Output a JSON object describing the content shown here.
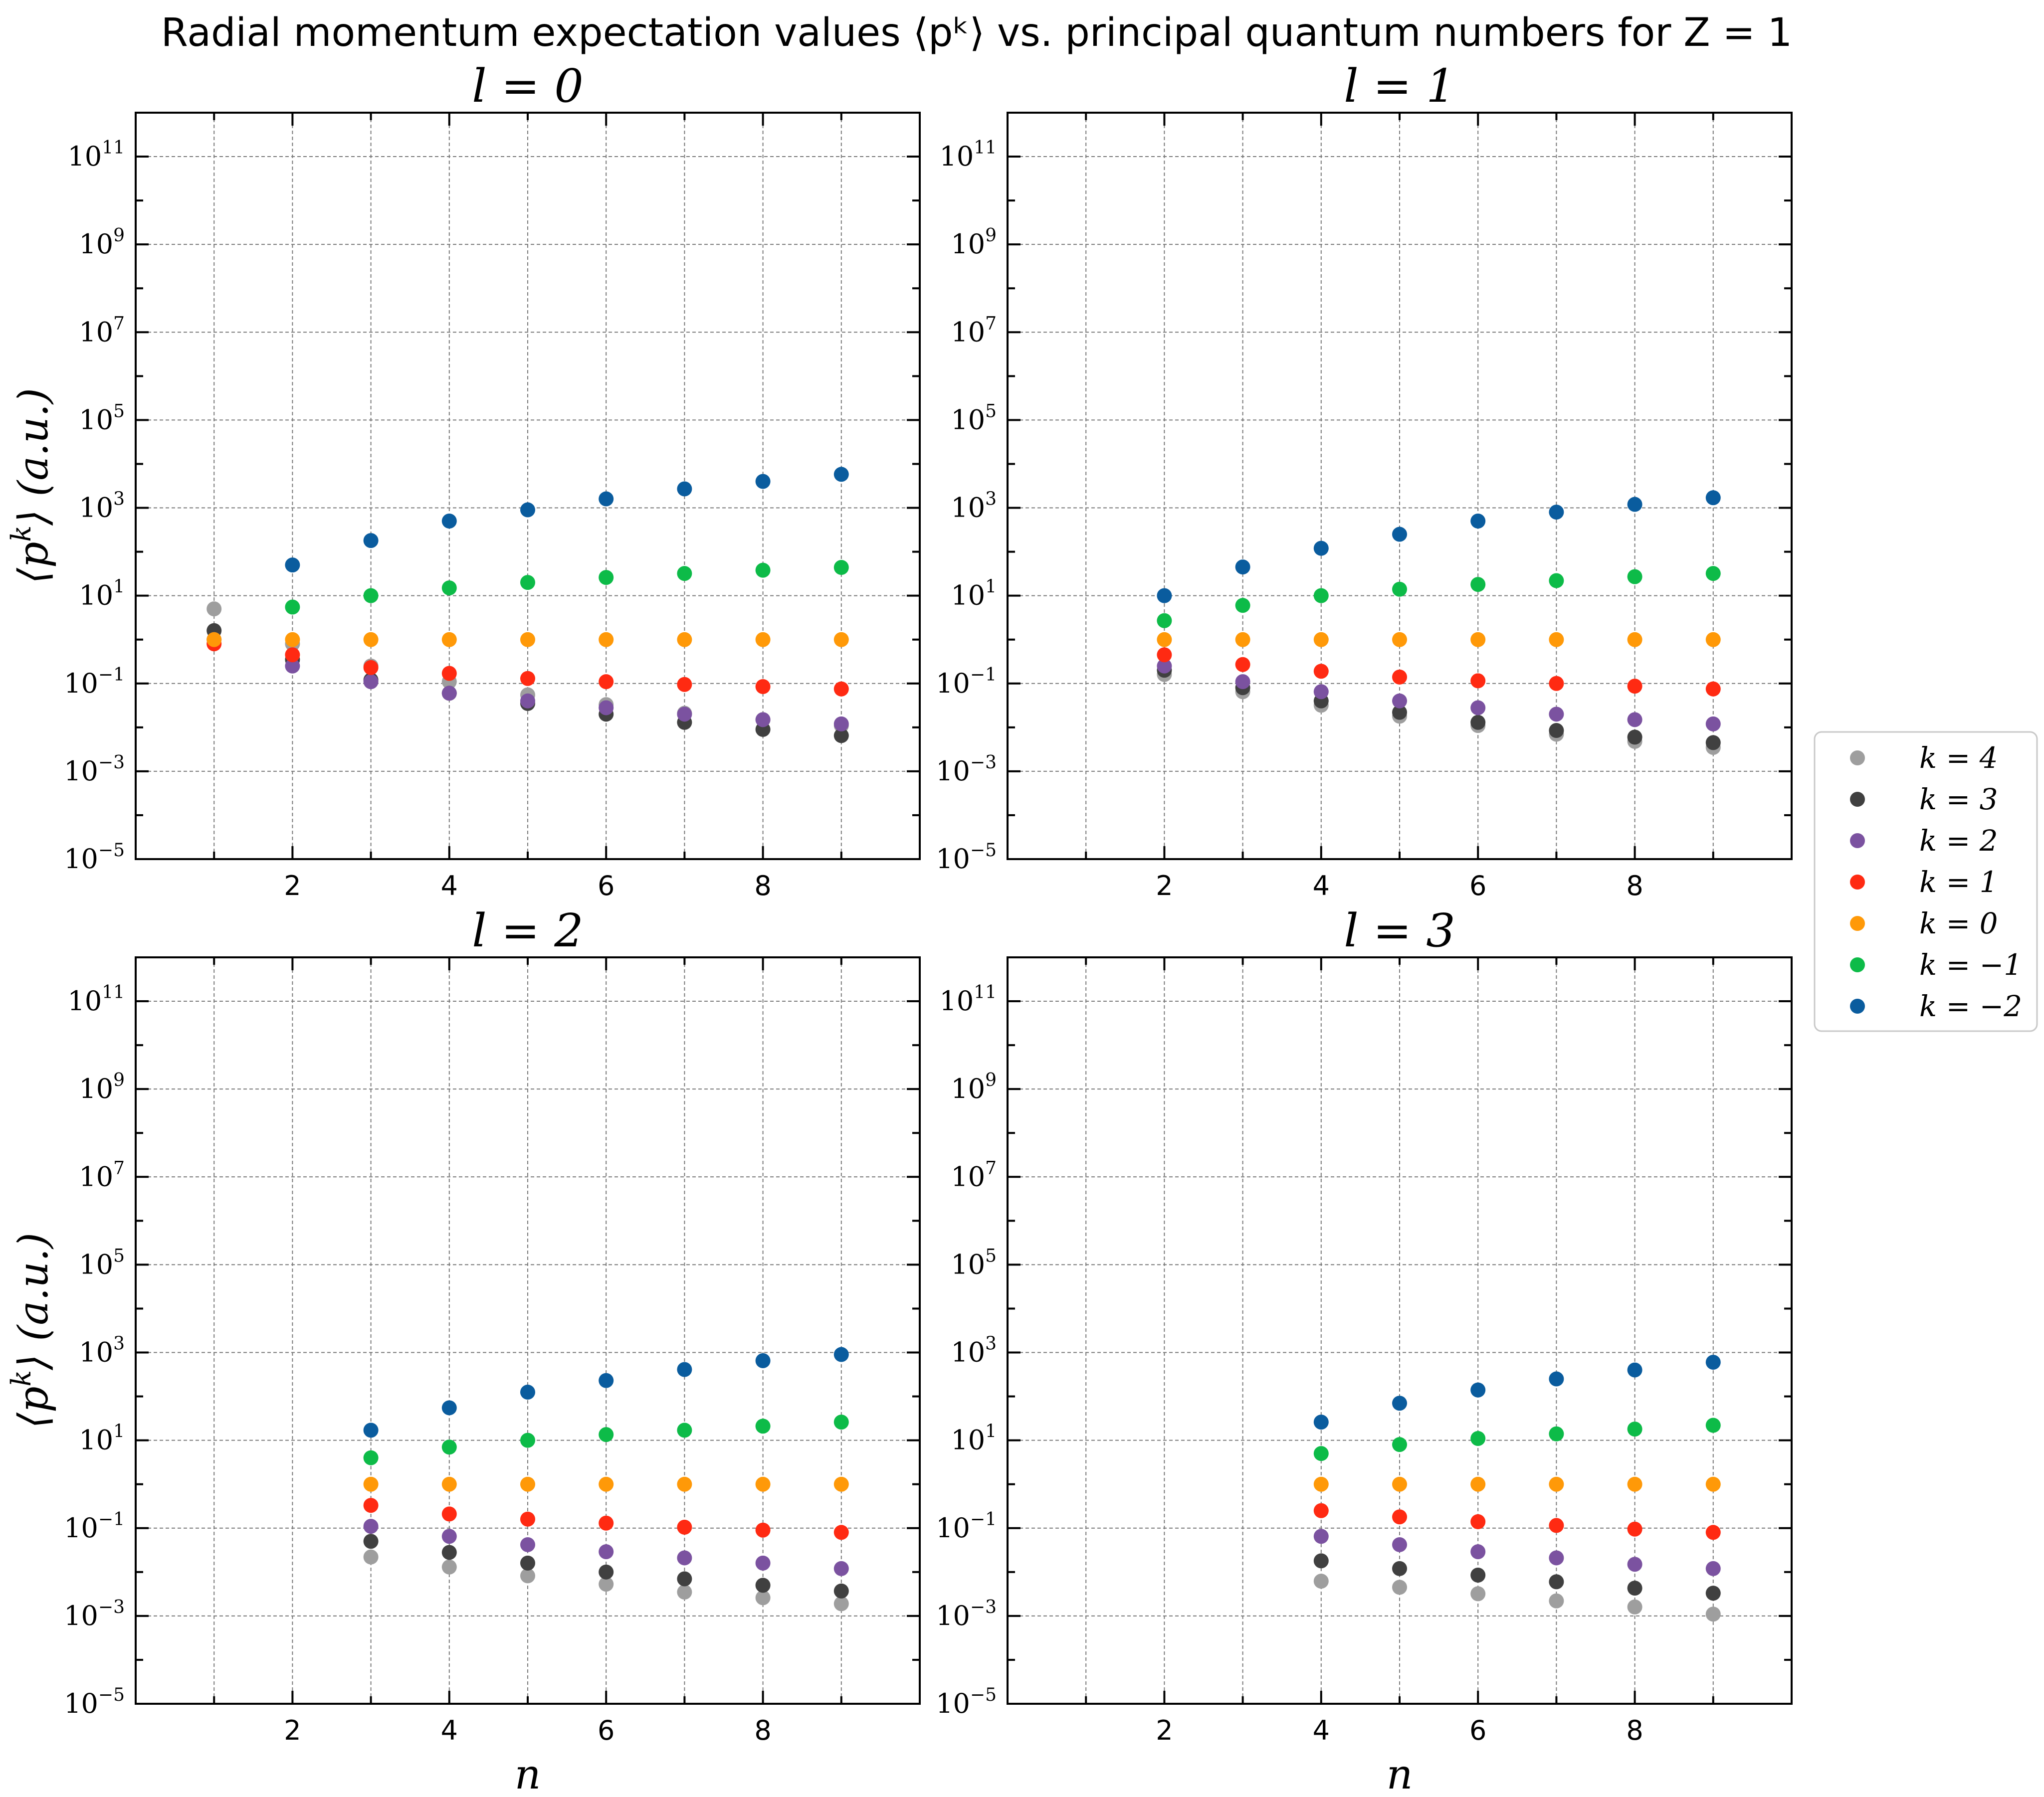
{
  "figure_title": "Radial momentum expectation values ⟨pᵏ⟩ vs. principal quantum numbers for Z = 1",
  "colors": {
    "k=4": "#9e9e9e",
    "k=3": "#404040",
    "k=2": "#7b52a0",
    "k=1": "#ff2a12",
    "k=0": "#ff9908",
    "k=-1": "#0dbb48",
    "k=-2": "#0a5c9e"
  },
  "legend": {
    "entries": [
      "k = 4",
      "k = 3",
      "k = 2",
      "k = 1",
      "k = 0",
      "k = −1",
      "k = −2"
    ]
  },
  "chart_data": [
    {
      "type": "scatter",
      "title": "l = 0",
      "xlabel": "",
      "ylabel": "⟨pᵏ⟩  (a.u.)",
      "xlim": [
        0,
        10
      ],
      "ylim": [
        1e-05,
        1000000000000.0
      ],
      "yscale": "log",
      "xticks": [
        "2",
        "4",
        "6",
        "8"
      ],
      "yticks": [
        "10⁻⁵",
        "10⁻³",
        "10⁻¹",
        "10¹",
        "10³",
        "10⁵",
        "10⁷",
        "10⁹",
        "10¹¹"
      ],
      "grid": true,
      "x": [
        1,
        2,
        3,
        4,
        5,
        6,
        7,
        8,
        9
      ],
      "series": [
        {
          "name": "k = 4",
          "values": [
            5,
            0.8,
            0.25,
            0.11,
            0.055,
            0.033,
            0.021,
            0.015,
            0.011
          ]
        },
        {
          "name": "k = 3",
          "values": [
            1.6,
            0.35,
            0.12,
            0.06,
            0.035,
            0.02,
            0.013,
            0.009,
            0.0065
          ]
        },
        {
          "name": "k = 2",
          "values": [
            1,
            0.25,
            0.11,
            0.06,
            0.04,
            0.028,
            0.02,
            0.015,
            0.012
          ]
        },
        {
          "name": "k = 1",
          "values": [
            0.8,
            0.45,
            0.23,
            0.17,
            0.13,
            0.11,
            0.095,
            0.085,
            0.075
          ]
        },
        {
          "name": "k = 0",
          "values": [
            1,
            1,
            1,
            1,
            1,
            1,
            1,
            1,
            1
          ]
        },
        {
          "name": "k = −1",
          "values": [
            null,
            5.5,
            10,
            15,
            20,
            26,
            32,
            38,
            44
          ]
        },
        {
          "name": "k = −2",
          "values": [
            null,
            50,
            180,
            500,
            900,
            1600,
            2700,
            4000,
            5800
          ]
        }
      ]
    },
    {
      "type": "scatter",
      "title": "l = 1",
      "xlabel": "",
      "ylabel": "",
      "xlim": [
        0,
        10
      ],
      "ylim": [
        1e-05,
        1000000000000.0
      ],
      "yscale": "log",
      "xticks": [
        "2",
        "4",
        "6",
        "8"
      ],
      "yticks": [
        "10⁻⁵",
        "10⁻³",
        "10⁻¹",
        "10¹",
        "10³",
        "10⁵",
        "10⁷",
        "10⁹",
        "10¹¹"
      ],
      "grid": true,
      "x": [
        2,
        3,
        4,
        5,
        6,
        7,
        8,
        9
      ],
      "series": [
        {
          "name": "k = 4",
          "values": [
            0.16,
            0.065,
            0.032,
            0.018,
            0.011,
            0.007,
            0.0048,
            0.0035
          ]
        },
        {
          "name": "k = 3",
          "values": [
            0.2,
            0.08,
            0.04,
            0.022,
            0.013,
            0.0085,
            0.006,
            0.0045
          ]
        },
        {
          "name": "k = 2",
          "values": [
            0.25,
            0.11,
            0.065,
            0.04,
            0.028,
            0.02,
            0.015,
            0.012
          ]
        },
        {
          "name": "k = 1",
          "values": [
            0.45,
            0.27,
            0.19,
            0.14,
            0.115,
            0.1,
            0.087,
            0.075
          ]
        },
        {
          "name": "k = 0",
          "values": [
            1,
            1,
            1,
            1,
            1,
            1,
            1,
            1
          ]
        },
        {
          "name": "k = −1",
          "values": [
            2.7,
            6,
            10,
            14,
            18,
            22,
            27,
            32
          ]
        },
        {
          "name": "k = −2",
          "values": [
            10,
            45,
            120,
            250,
            500,
            800,
            1200,
            1700
          ]
        }
      ]
    },
    {
      "type": "scatter",
      "title": "l = 2",
      "xlabel": "n",
      "ylabel": "⟨pᵏ⟩  (a.u.)",
      "xlim": [
        0,
        10
      ],
      "ylim": [
        1e-05,
        1000000000000.0
      ],
      "yscale": "log",
      "xticks": [
        "2",
        "4",
        "6",
        "8"
      ],
      "yticks": [
        "10⁻⁵",
        "10⁻³",
        "10⁻¹",
        "10¹",
        "10³",
        "10⁵",
        "10⁷",
        "10⁹",
        "10¹¹"
      ],
      "grid": true,
      "x": [
        3,
        4,
        5,
        6,
        7,
        8,
        9
      ],
      "series": [
        {
          "name": "k = 4",
          "values": [
            0.022,
            0.013,
            0.0082,
            0.0053,
            0.0035,
            0.0026,
            0.0019
          ]
        },
        {
          "name": "k = 3",
          "values": [
            0.05,
            0.028,
            0.016,
            0.01,
            0.007,
            0.005,
            0.0037
          ]
        },
        {
          "name": "k = 2",
          "values": [
            0.11,
            0.065,
            0.042,
            0.029,
            0.021,
            0.016,
            0.012
          ]
        },
        {
          "name": "k = 1",
          "values": [
            0.33,
            0.21,
            0.16,
            0.13,
            0.105,
            0.09,
            0.08
          ]
        },
        {
          "name": "k = 0",
          "values": [
            1,
            1,
            1,
            1,
            1,
            1,
            1
          ]
        },
        {
          "name": "k = −1",
          "values": [
            4,
            7,
            10,
            13.5,
            17,
            21,
            26
          ]
        },
        {
          "name": "k = −2",
          "values": [
            17,
            55,
            125,
            230,
            410,
            650,
            900
          ]
        }
      ]
    },
    {
      "type": "scatter",
      "title": "l = 3",
      "xlabel": "n",
      "ylabel": "",
      "xlim": [
        0,
        10
      ],
      "ylim": [
        1e-05,
        1000000000000.0
      ],
      "yscale": "log",
      "xticks": [
        "2",
        "4",
        "6",
        "8"
      ],
      "yticks": [
        "10⁻⁵",
        "10⁻³",
        "10⁻¹",
        "10¹",
        "10³",
        "10⁵",
        "10⁷",
        "10⁹",
        "10¹¹"
      ],
      "grid": true,
      "x": [
        4,
        5,
        6,
        7,
        8,
        9
      ],
      "series": [
        {
          "name": "k = 4",
          "values": [
            0.0062,
            0.0045,
            0.0032,
            0.0022,
            0.0016,
            0.0011
          ]
        },
        {
          "name": "k = 3",
          "values": [
            0.018,
            0.012,
            0.0085,
            0.006,
            0.0043,
            0.0033
          ]
        },
        {
          "name": "k = 2",
          "values": [
            0.065,
            0.042,
            0.029,
            0.021,
            0.015,
            0.012
          ]
        },
        {
          "name": "k = 1",
          "values": [
            0.25,
            0.18,
            0.14,
            0.115,
            0.095,
            0.08
          ]
        },
        {
          "name": "k = 0",
          "values": [
            1,
            1,
            1,
            1,
            1,
            1
          ]
        },
        {
          "name": "k = −1",
          "values": [
            5,
            8,
            11,
            14,
            18,
            22
          ]
        },
        {
          "name": "k = −2",
          "values": [
            26,
            70,
            140,
            250,
            400,
            600
          ]
        }
      ]
    }
  ]
}
